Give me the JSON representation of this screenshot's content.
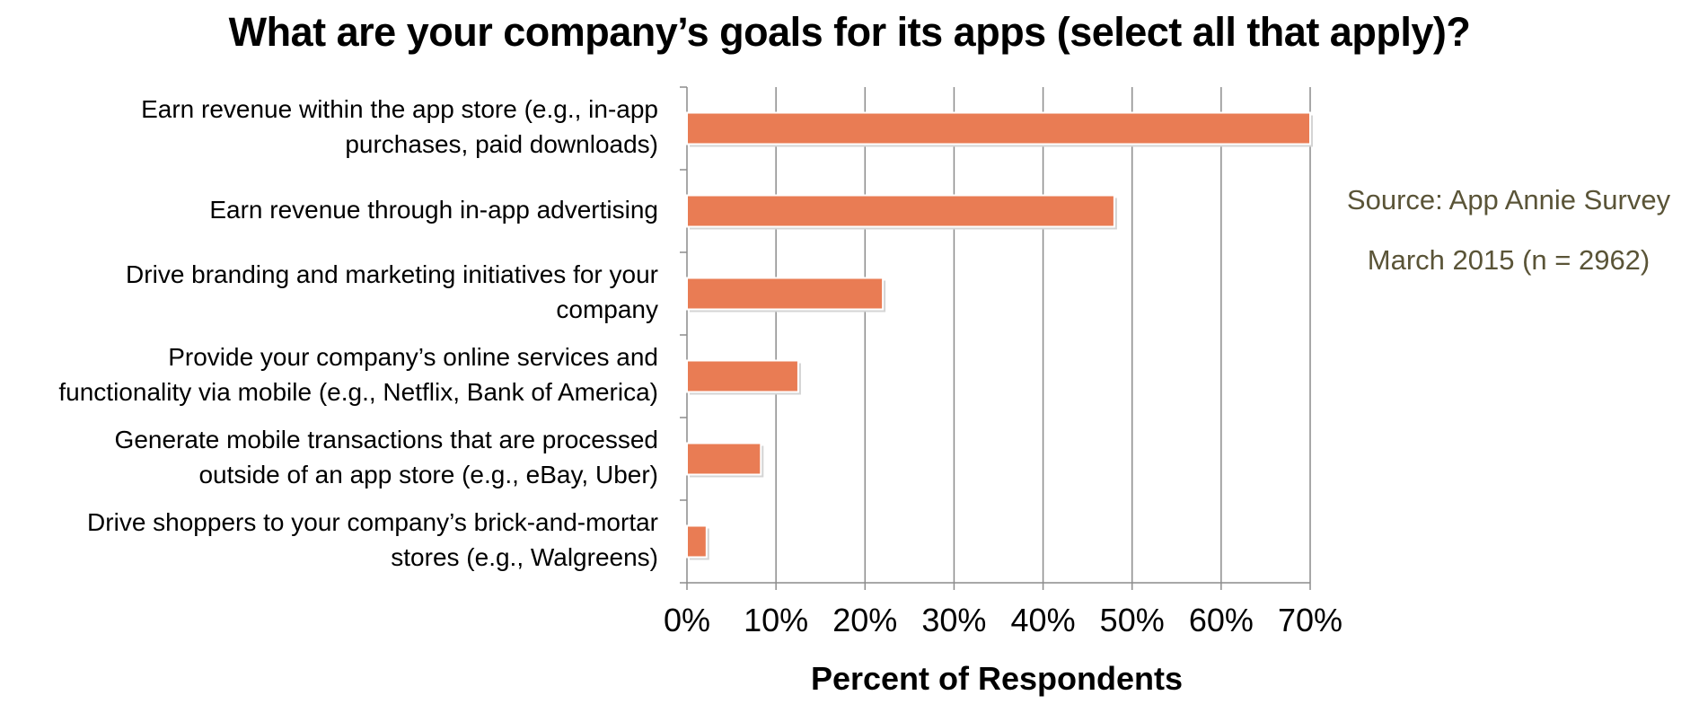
{
  "chart_data": {
    "type": "bar",
    "orientation": "horizontal",
    "title": "What are your company’s goals for its apps (select all that apply)?",
    "xlabel": "Percent of Respondents",
    "ylabel": "",
    "categories": [
      "Earn revenue within the app store (e.g., in-app\npurchases, paid downloads)",
      "Earn revenue through in-app advertising",
      "Drive branding and marketing initiatives for your\ncompany",
      "Provide your company’s online services and\nfunctionality via mobile (e.g., Netflix, Bank of America)",
      "Generate mobile transactions that are processed\noutside of an app store (e.g., eBay, Uber)",
      "Drive shoppers to your company’s brick-and-mortar\nstores (e.g., Walgreens)"
    ],
    "values": [
      70,
      48,
      22,
      12.5,
      8.3,
      2.2
    ],
    "xlim": [
      0,
      70
    ],
    "xticks": [
      "0%",
      "10%",
      "20%",
      "30%",
      "40%",
      "50%",
      "60%",
      "70%"
    ],
    "grid": "vertical",
    "bar_color": "#e97c54",
    "annotation": [
      "Source: App Annie Survey",
      "March 2015 (n = 2962)"
    ]
  }
}
